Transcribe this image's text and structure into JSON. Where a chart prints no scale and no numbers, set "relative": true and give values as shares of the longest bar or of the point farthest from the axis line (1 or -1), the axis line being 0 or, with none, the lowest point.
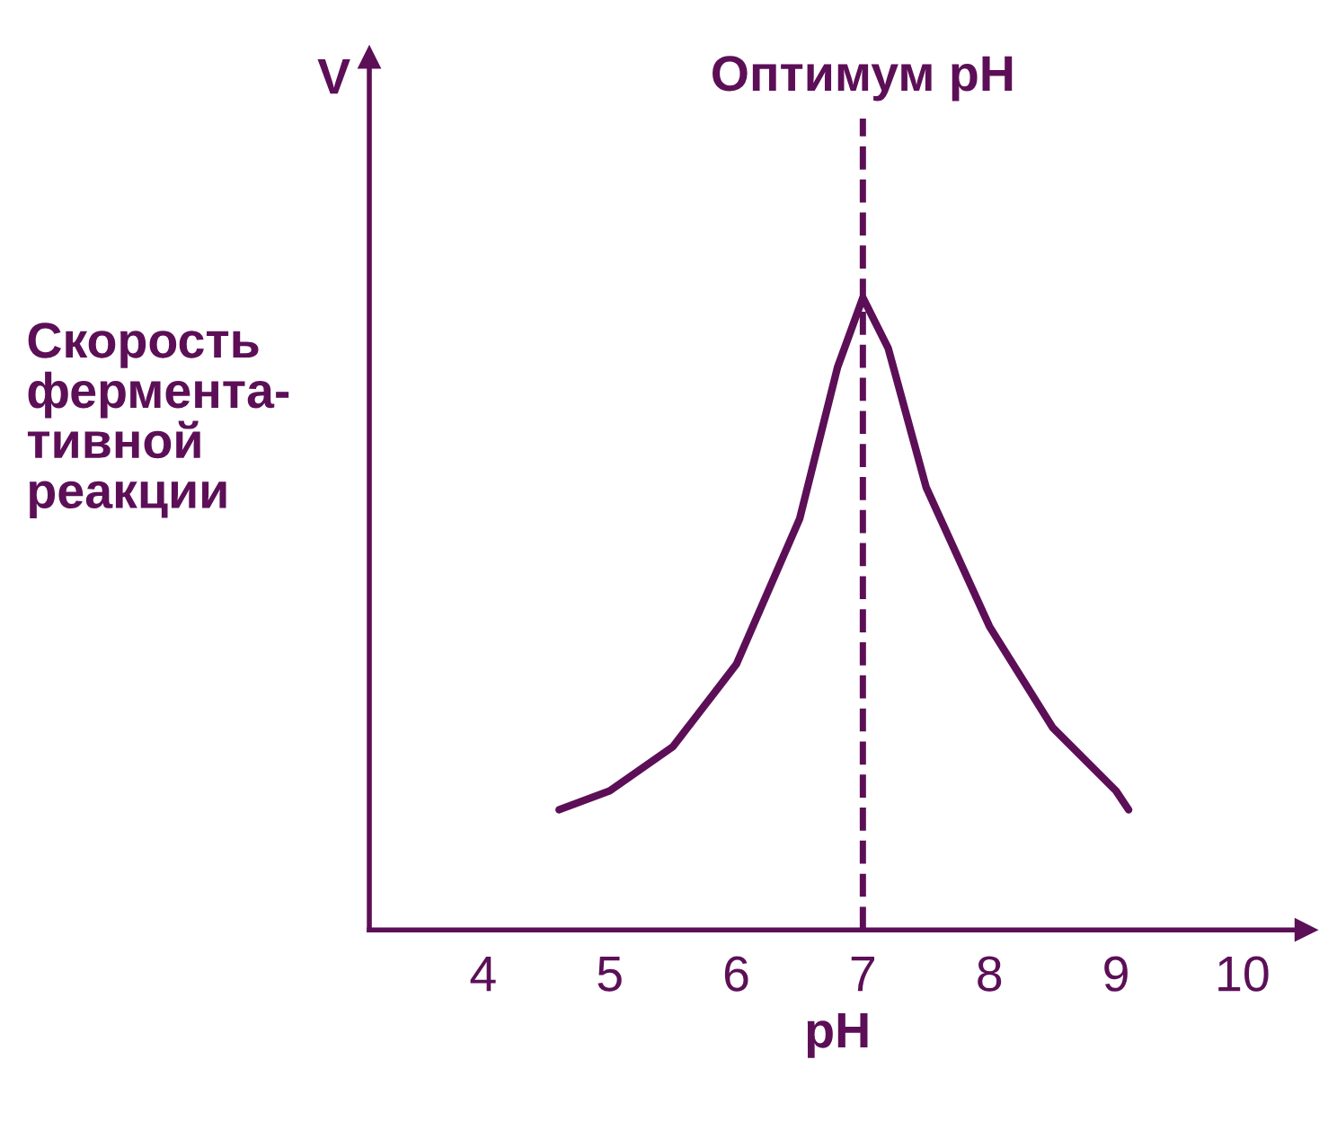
{
  "chart_data": {
    "type": "line",
    "relative": true,
    "xlabel": "pH",
    "ylabel": "V",
    "color": "#5c0f57",
    "annotations": [
      "Скорость\nфермента-\nтивной\nреакции"
    ],
    "x": [
      4.6,
      5,
      5.5,
      6,
      6.5,
      6.8,
      7,
      7.2,
      7.5,
      8,
      8.5,
      9,
      9.1
    ],
    "values": [
      0.19,
      0.22,
      0.29,
      0.42,
      0.65,
      0.89,
      1,
      0.92,
      0.7,
      0.48,
      0.32,
      0.22,
      0.19
    ],
    "xlim": [
      3.1,
      10.5
    ],
    "xticks": [
      4,
      5,
      6,
      7,
      8,
      9,
      10
    ],
    "ref_lines": [
      {
        "axis": "x",
        "value": 7,
        "label": "Оптимум pH",
        "line_style": "dashed"
      }
    ],
    "grid": false,
    "legend": false,
    "marker": "none",
    "line_style": "solid"
  }
}
